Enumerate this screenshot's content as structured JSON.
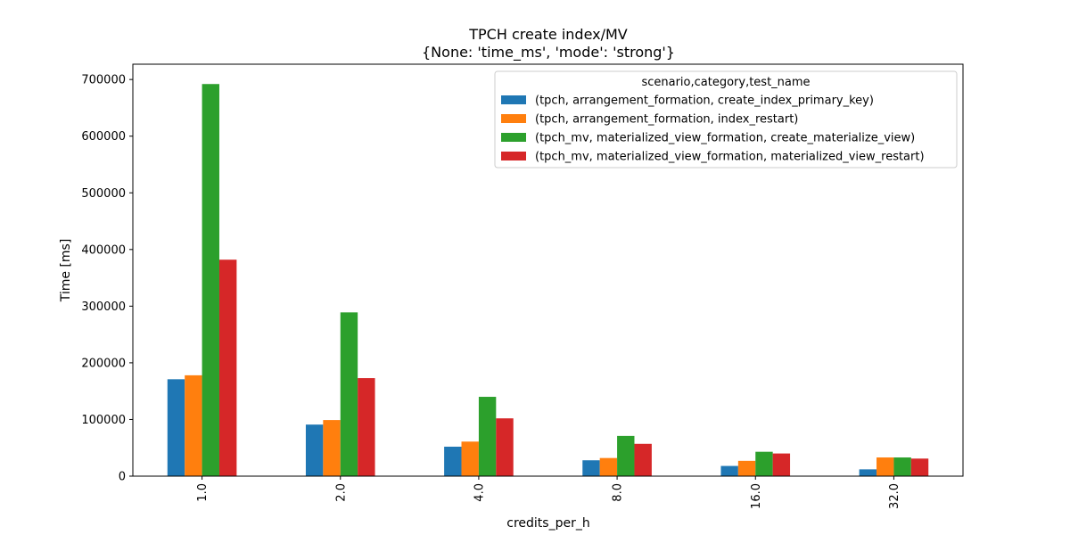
{
  "chart_data": {
    "type": "bar",
    "title": "TPCH create index/MV",
    "subtitle": "{None: 'time_ms', 'mode': 'strong'}",
    "xlabel": "credits_per_h",
    "ylabel": "Time [ms]",
    "categories": [
      "1.0",
      "2.0",
      "4.0",
      "8.0",
      "16.0",
      "32.0"
    ],
    "ylim": [
      0,
      727000
    ],
    "yticks": [
      0,
      100000,
      200000,
      300000,
      400000,
      500000,
      600000,
      700000
    ],
    "ytick_labels": [
      "0",
      "100000",
      "200000",
      "300000",
      "400000",
      "500000",
      "600000",
      "700000"
    ],
    "legend": {
      "title": "scenario,category,test_name",
      "placement": "top-right"
    },
    "grid": false,
    "series": [
      {
        "name": "(tpch, arrangement_formation, create_index_primary_key)",
        "color": "#1f77b4",
        "values": [
          171000,
          91000,
          52000,
          28000,
          18000,
          12000
        ]
      },
      {
        "name": "(tpch, arrangement_formation, index_restart)",
        "color": "#ff7f0e",
        "values": [
          178000,
          99000,
          61000,
          32000,
          27000,
          33000
        ]
      },
      {
        "name": "(tpch_mv, materialized_view_formation, create_materialize_view)",
        "color": "#2ca02c",
        "values": [
          692000,
          289000,
          140000,
          71000,
          43000,
          33000
        ]
      },
      {
        "name": "(tpch_mv, materialized_view_formation, materialized_view_restart)",
        "color": "#d62728",
        "values": [
          382000,
          173000,
          102000,
          57000,
          40000,
          31000
        ]
      }
    ]
  }
}
